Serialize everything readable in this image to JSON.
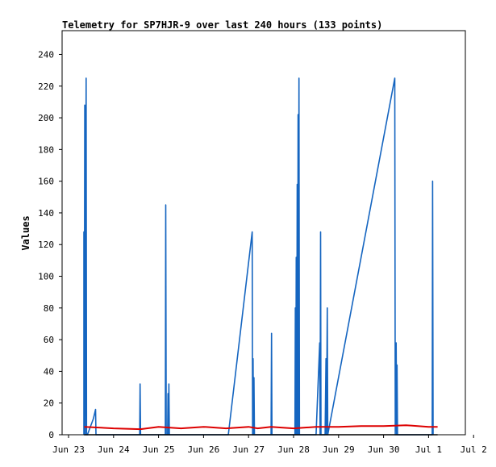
{
  "chart_data": {
    "type": "line",
    "title": "Telemetry for SP7HJR-9 over last 240 hours (133 points)",
    "ylabel": "Values",
    "xlabel": "",
    "ylim": [
      0,
      255
    ],
    "y_ticks": [
      0,
      20,
      40,
      60,
      80,
      100,
      120,
      140,
      160,
      180,
      200,
      220,
      240
    ],
    "x_tick_labels": [
      "Jun 23",
      "Jun 24",
      "Jun 25",
      "Jun 26",
      "Jun 27",
      "Jun 28",
      "Jun 29",
      "Jun 30",
      "Jul 1",
      "Jul 2"
    ],
    "x_unit": "days since Jun 23 00:00",
    "xlim": [
      0,
      9
    ],
    "grid": false,
    "legend": "none",
    "series": [
      {
        "color": "#1565c0",
        "points": [
          [
            0.34,
            0
          ],
          [
            0.34,
            128
          ],
          [
            0.35,
            0
          ],
          [
            0.36,
            208
          ],
          [
            0.37,
            0
          ],
          [
            0.39,
            225
          ],
          [
            0.4,
            0
          ],
          [
            0.42,
            0
          ],
          [
            0.55,
            10
          ],
          [
            0.6,
            16
          ],
          [
            0.61,
            0
          ],
          [
            1.58,
            0
          ],
          [
            1.59,
            32
          ],
          [
            1.6,
            0
          ],
          [
            2.15,
            0
          ],
          [
            2.16,
            145
          ],
          [
            2.17,
            0
          ],
          [
            2.2,
            0
          ],
          [
            2.21,
            26
          ],
          [
            2.22,
            0
          ],
          [
            2.23,
            32
          ],
          [
            2.24,
            0
          ],
          [
            3.55,
            0
          ],
          [
            4.08,
            128
          ],
          [
            4.09,
            0
          ],
          [
            4.1,
            48
          ],
          [
            4.11,
            0
          ],
          [
            4.12,
            36
          ],
          [
            4.13,
            0
          ],
          [
            4.5,
            0
          ],
          [
            4.51,
            64
          ],
          [
            4.52,
            0
          ],
          [
            5.03,
            0
          ],
          [
            5.04,
            80
          ],
          [
            5.05,
            0
          ],
          [
            5.06,
            112
          ],
          [
            5.07,
            0
          ],
          [
            5.08,
            158
          ],
          [
            5.09,
            0
          ],
          [
            5.1,
            202
          ],
          [
            5.11,
            0
          ],
          [
            5.12,
            225
          ],
          [
            5.13,
            0
          ],
          [
            5.5,
            0
          ],
          [
            5.58,
            58
          ],
          [
            5.59,
            0
          ],
          [
            5.6,
            128
          ],
          [
            5.61,
            0
          ],
          [
            5.7,
            0
          ],
          [
            5.72,
            48
          ],
          [
            5.73,
            0
          ],
          [
            5.75,
            80
          ],
          [
            5.76,
            0
          ],
          [
            7.25,
            225
          ],
          [
            7.26,
            0
          ],
          [
            7.28,
            58
          ],
          [
            7.29,
            0
          ],
          [
            7.3,
            44
          ],
          [
            7.31,
            0
          ],
          [
            8.08,
            0
          ],
          [
            8.09,
            160
          ],
          [
            8.1,
            0
          ]
        ]
      },
      {
        "color": "#dd0000",
        "points": [
          [
            0.35,
            5
          ],
          [
            1.0,
            4
          ],
          [
            1.6,
            3.5
          ],
          [
            2.0,
            5
          ],
          [
            2.5,
            4
          ],
          [
            3.0,
            5
          ],
          [
            3.5,
            4
          ],
          [
            4.0,
            5
          ],
          [
            4.2,
            4
          ],
          [
            4.5,
            5
          ],
          [
            5.0,
            4
          ],
          [
            5.5,
            5
          ],
          [
            6.0,
            5
          ],
          [
            6.5,
            5.5
          ],
          [
            7.0,
            5.5
          ],
          [
            7.5,
            6
          ],
          [
            8.0,
            5
          ],
          [
            8.2,
            5
          ]
        ]
      },
      {
        "color": "#000000",
        "points": [
          [
            0.35,
            0
          ],
          [
            8.2,
            0
          ]
        ]
      }
    ]
  }
}
